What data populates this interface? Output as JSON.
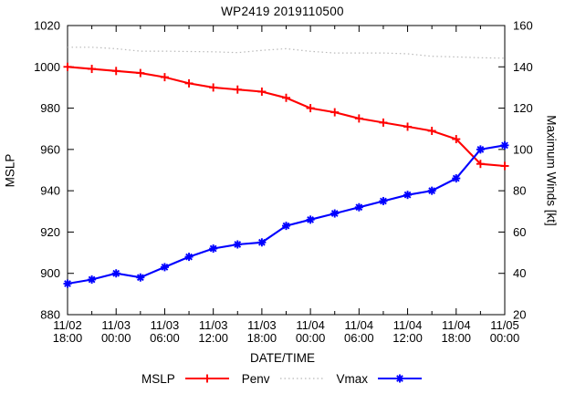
{
  "chart_data": {
    "type": "line",
    "title": "WP2419 2019110500",
    "xlabel": "DATE/TIME",
    "ylabel_left": "MSLP",
    "ylabel_right": "Maximum Winds [kt]",
    "grid": false,
    "legend_position": "bottom-center",
    "x": [
      "11/02 18:00",
      "11/02 21:00",
      "11/03 00:00",
      "11/03 03:00",
      "11/03 06:00",
      "11/03 09:00",
      "11/03 12:00",
      "11/03 15:00",
      "11/03 18:00",
      "11/03 21:00",
      "11/04 00:00",
      "11/04 03:00",
      "11/04 06:00",
      "11/04 09:00",
      "11/04 12:00",
      "11/04 15:00",
      "11/04 18:00",
      "11/04 21:00",
      "11/05 00:00"
    ],
    "x_major_tick_labels": [
      {
        "date": "11/02",
        "time": "18:00"
      },
      {
        "date": "11/03",
        "time": "00:00"
      },
      {
        "date": "11/03",
        "time": "06:00"
      },
      {
        "date": "11/03",
        "time": "12:00"
      },
      {
        "date": "11/03",
        "time": "18:00"
      },
      {
        "date": "11/04",
        "time": "00:00"
      },
      {
        "date": "11/04",
        "time": "06:00"
      },
      {
        "date": "11/04",
        "time": "12:00"
      },
      {
        "date": "11/04",
        "time": "18:00"
      },
      {
        "date": "11/05",
        "time": "00:00"
      }
    ],
    "y_left": {
      "min": 880,
      "max": 1020,
      "step": 20,
      "tick_labels": [
        "880",
        "900",
        "920",
        "940",
        "960",
        "980",
        "1000",
        "1020"
      ]
    },
    "y_right": {
      "min": 20,
      "max": 160,
      "step": 20,
      "tick_labels": [
        "20",
        "40",
        "60",
        "80",
        "100",
        "120",
        "140",
        "160"
      ]
    },
    "series": [
      {
        "name": "MSLP",
        "axis": "left",
        "color": "#ff0000",
        "style": "solid",
        "marker": "plus",
        "values": [
          1000,
          999,
          998,
          997,
          995,
          992,
          990,
          989,
          988,
          985,
          980,
          978,
          975,
          973,
          971,
          969,
          965,
          953,
          952
        ]
      },
      {
        "name": "Penv",
        "axis": "left",
        "color": "#b9b9b9",
        "style": "dotted",
        "marker": "none",
        "values": [
          1009.5,
          1009.5,
          1008.8,
          1007.6,
          1007.6,
          1007.4,
          1007.3,
          1006.9,
          1008,
          1008.8,
          1007.5,
          1006.7,
          1006.7,
          1006.7,
          1006.3,
          1005.1,
          1004.8,
          1004.4,
          1004.2
        ]
      },
      {
        "name": "Vmax",
        "axis": "right",
        "color": "#0000ff",
        "style": "solid",
        "marker": "asterisk",
        "values": [
          35,
          37,
          40,
          38,
          43,
          48,
          52,
          54,
          55,
          63,
          66,
          69,
          72,
          75,
          78,
          80,
          86,
          100,
          102
        ]
      }
    ]
  }
}
